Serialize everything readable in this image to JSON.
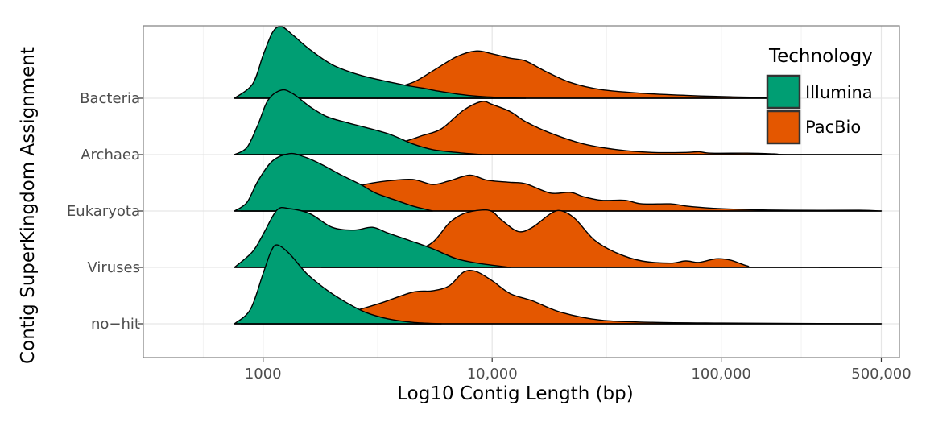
{
  "chart_data": {
    "type": "ridgeline",
    "title": "",
    "xlabel": "Log10 Contig Length (bp)",
    "ylabel": "Contig SuperKingdom Assignment",
    "x_scale": "log10",
    "xlim": [
      300,
      600000
    ],
    "x_ticks": [
      {
        "value": 1000,
        "label": "1000"
      },
      {
        "value": 10000,
        "label": "10,000"
      },
      {
        "value": 100000,
        "label": "100,000"
      },
      {
        "value": 500000,
        "label": "500,000"
      }
    ],
    "categories": [
      "Bacteria",
      "Archaea",
      "Eukaryota",
      "Viruses",
      "no−hit"
    ],
    "grid": true,
    "legend": {
      "title": "Technology",
      "position": "top-right",
      "entries": [
        {
          "name": "Illumina",
          "color": "#009E73"
        },
        {
          "name": "PacBio",
          "color": "#E45700"
        }
      ]
    },
    "series": [
      {
        "category": "Bacteria",
        "technology": "PacBio",
        "color": "#E45700",
        "points": [
          [
            1400,
            0
          ],
          [
            1800,
            0.03
          ],
          [
            2500,
            0.08
          ],
          [
            3500,
            0.13
          ],
          [
            4500,
            0.22
          ],
          [
            5500,
            0.38
          ],
          [
            7000,
            0.58
          ],
          [
            8500,
            0.66
          ],
          [
            10000,
            0.62
          ],
          [
            12000,
            0.56
          ],
          [
            14000,
            0.52
          ],
          [
            17000,
            0.38
          ],
          [
            22000,
            0.22
          ],
          [
            30000,
            0.12
          ],
          [
            45000,
            0.07
          ],
          [
            70000,
            0.04
          ],
          [
            110000,
            0.02
          ],
          [
            160000,
            0.01
          ],
          [
            180000,
            0
          ]
        ]
      },
      {
        "category": "Bacteria",
        "technology": "Illumina",
        "color": "#009E73",
        "points": [
          [
            750,
            0
          ],
          [
            900,
            0.2
          ],
          [
            1000,
            0.6
          ],
          [
            1100,
            0.92
          ],
          [
            1200,
            1.0
          ],
          [
            1350,
            0.88
          ],
          [
            1600,
            0.68
          ],
          [
            2000,
            0.47
          ],
          [
            2600,
            0.33
          ],
          [
            3300,
            0.25
          ],
          [
            4200,
            0.18
          ],
          [
            5000,
            0.14
          ],
          [
            5800,
            0.1
          ],
          [
            7000,
            0.06
          ],
          [
            8500,
            0.03
          ],
          [
            11000,
            0.01
          ],
          [
            14000,
            0
          ]
        ]
      },
      {
        "category": "Archaea",
        "technology": "PacBio",
        "color": "#E45700",
        "points": [
          [
            1700,
            0
          ],
          [
            2200,
            0.04
          ],
          [
            3000,
            0.08
          ],
          [
            4000,
            0.17
          ],
          [
            5000,
            0.27
          ],
          [
            6000,
            0.36
          ],
          [
            7500,
            0.62
          ],
          [
            9000,
            0.74
          ],
          [
            10000,
            0.7
          ],
          [
            12000,
            0.6
          ],
          [
            14000,
            0.46
          ],
          [
            18000,
            0.3
          ],
          [
            25000,
            0.15
          ],
          [
            35000,
            0.07
          ],
          [
            50000,
            0.03
          ],
          [
            70000,
            0.03
          ],
          [
            80000,
            0.04
          ],
          [
            90000,
            0.02
          ],
          [
            130000,
            0.02
          ],
          [
            170000,
            0.01
          ],
          [
            200000,
            0
          ],
          [
            500000,
            0
          ]
        ]
      },
      {
        "category": "Archaea",
        "technology": "Illumina",
        "color": "#009E73",
        "points": [
          [
            750,
            0
          ],
          [
            850,
            0.1
          ],
          [
            950,
            0.42
          ],
          [
            1050,
            0.76
          ],
          [
            1200,
            0.9
          ],
          [
            1350,
            0.85
          ],
          [
            1600,
            0.67
          ],
          [
            1900,
            0.53
          ],
          [
            2300,
            0.45
          ],
          [
            2800,
            0.38
          ],
          [
            3600,
            0.28
          ],
          [
            4500,
            0.15
          ],
          [
            5500,
            0.07
          ],
          [
            7000,
            0.03
          ],
          [
            9000,
            0
          ]
        ]
      },
      {
        "category": "Eukaryota",
        "technology": "PacBio",
        "color": "#E45700",
        "points": [
          [
            800,
            0
          ],
          [
            1200,
            0.05
          ],
          [
            1600,
            0.14
          ],
          [
            2000,
            0.23
          ],
          [
            2700,
            0.36
          ],
          [
            3500,
            0.42
          ],
          [
            4500,
            0.44
          ],
          [
            5500,
            0.37
          ],
          [
            6500,
            0.42
          ],
          [
            8000,
            0.5
          ],
          [
            9500,
            0.43
          ],
          [
            12000,
            0.4
          ],
          [
            14000,
            0.38
          ],
          [
            18000,
            0.25
          ],
          [
            22000,
            0.26
          ],
          [
            25000,
            0.2
          ],
          [
            30000,
            0.15
          ],
          [
            38000,
            0.15
          ],
          [
            45000,
            0.1
          ],
          [
            60000,
            0.1
          ],
          [
            70000,
            0.07
          ],
          [
            90000,
            0.04
          ],
          [
            130000,
            0.02
          ],
          [
            200000,
            0.01
          ],
          [
            400000,
            0.01
          ],
          [
            500000,
            0
          ]
        ]
      },
      {
        "category": "Eukaryota",
        "technology": "Illumina",
        "color": "#009E73",
        "points": [
          [
            750,
            0
          ],
          [
            850,
            0.12
          ],
          [
            950,
            0.42
          ],
          [
            1100,
            0.7
          ],
          [
            1300,
            0.8
          ],
          [
            1500,
            0.76
          ],
          [
            1800,
            0.65
          ],
          [
            2200,
            0.5
          ],
          [
            2700,
            0.36
          ],
          [
            3100,
            0.25
          ],
          [
            3800,
            0.15
          ],
          [
            4500,
            0.07
          ],
          [
            5500,
            0
          ]
        ]
      },
      {
        "category": "Viruses",
        "technology": "PacBio",
        "color": "#E45700",
        "points": [
          [
            1800,
            0
          ],
          [
            2500,
            0.03
          ],
          [
            3500,
            0.1
          ],
          [
            4500,
            0.22
          ],
          [
            5500,
            0.35
          ],
          [
            6500,
            0.62
          ],
          [
            7500,
            0.75
          ],
          [
            9000,
            0.8
          ],
          [
            10000,
            0.78
          ],
          [
            11000,
            0.66
          ],
          [
            13000,
            0.5
          ],
          [
            15000,
            0.56
          ],
          [
            18000,
            0.75
          ],
          [
            20000,
            0.79
          ],
          [
            23000,
            0.68
          ],
          [
            28000,
            0.38
          ],
          [
            35000,
            0.2
          ],
          [
            45000,
            0.09
          ],
          [
            60000,
            0.06
          ],
          [
            70000,
            0.09
          ],
          [
            80000,
            0.07
          ],
          [
            95000,
            0.12
          ],
          [
            110000,
            0.1
          ],
          [
            130000,
            0.02
          ],
          [
            150000,
            0
          ],
          [
            500000,
            0
          ]
        ]
      },
      {
        "category": "Viruses",
        "technology": "Illumina",
        "color": "#009E73",
        "points": [
          [
            750,
            0
          ],
          [
            900,
            0.22
          ],
          [
            1000,
            0.46
          ],
          [
            1150,
            0.8
          ],
          [
            1300,
            0.82
          ],
          [
            1600,
            0.75
          ],
          [
            2000,
            0.56
          ],
          [
            2500,
            0.52
          ],
          [
            3000,
            0.56
          ],
          [
            3500,
            0.48
          ],
          [
            4500,
            0.36
          ],
          [
            5500,
            0.26
          ],
          [
            7000,
            0.12
          ],
          [
            9000,
            0.05
          ],
          [
            12000,
            0
          ]
        ]
      },
      {
        "category": "no−hit",
        "technology": "PacBio",
        "color": "#E45700",
        "points": [
          [
            800,
            0
          ],
          [
            1100,
            0.02
          ],
          [
            1600,
            0.05
          ],
          [
            2300,
            0.15
          ],
          [
            3200,
            0.28
          ],
          [
            4500,
            0.44
          ],
          [
            5500,
            0.46
          ],
          [
            6500,
            0.53
          ],
          [
            7500,
            0.72
          ],
          [
            8500,
            0.73
          ],
          [
            10000,
            0.6
          ],
          [
            12000,
            0.42
          ],
          [
            15000,
            0.32
          ],
          [
            20000,
            0.16
          ],
          [
            30000,
            0.05
          ],
          [
            50000,
            0.02
          ],
          [
            100000,
            0.01
          ],
          [
            500000,
            0
          ]
        ]
      },
      {
        "category": "no−hit",
        "technology": "Illumina",
        "color": "#009E73",
        "points": [
          [
            750,
            0
          ],
          [
            880,
            0.2
          ],
          [
            1000,
            0.7
          ],
          [
            1080,
            1.0
          ],
          [
            1150,
            1.1
          ],
          [
            1300,
            0.98
          ],
          [
            1550,
            0.7
          ],
          [
            1900,
            0.47
          ],
          [
            2300,
            0.3
          ],
          [
            2800,
            0.16
          ],
          [
            3500,
            0.07
          ],
          [
            4500,
            0.02
          ],
          [
            6000,
            0
          ]
        ]
      }
    ]
  }
}
